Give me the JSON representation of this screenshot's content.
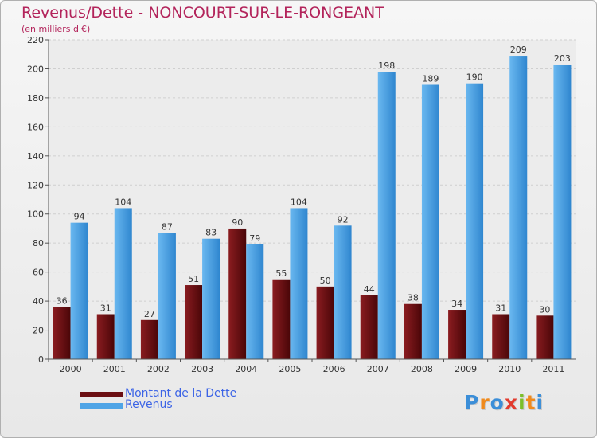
{
  "title": "Revenus/Dette - NONCOURT-SUR-LE-RONGEANT",
  "subtitle": "(en milliers d'€)",
  "chart_data": {
    "type": "bar",
    "categories": [
      "2000",
      "2001",
      "2002",
      "2003",
      "2004",
      "2005",
      "2006",
      "2007",
      "2008",
      "2009",
      "2010",
      "2011"
    ],
    "series": [
      {
        "name": "Montant de la Dette",
        "values": [
          36,
          31,
          27,
          51,
          90,
          55,
          50,
          44,
          38,
          34,
          31,
          30
        ],
        "color": "#6b0f12"
      },
      {
        "name": "Revenus",
        "values": [
          94,
          104,
          87,
          83,
          79,
          104,
          92,
          198,
          189,
          190,
          209,
          203
        ],
        "color": "#4ea4e6"
      }
    ],
    "ylim": [
      0,
      220
    ],
    "yticks": [
      0,
      20,
      40,
      60,
      80,
      100,
      120,
      140,
      160,
      180,
      200,
      220
    ],
    "grid": true,
    "legend_position": "bottom-left"
  },
  "logo": {
    "letters": [
      {
        "ch": "P",
        "color": "#3b8ed8"
      },
      {
        "ch": "r",
        "color": "#f08a1c"
      },
      {
        "ch": "o",
        "color": "#3b8ed8"
      },
      {
        "ch": "x",
        "color": "#e23b2e"
      },
      {
        "ch": "i",
        "color": "#7cbf2a"
      },
      {
        "ch": "t",
        "color": "#f08a1c"
      },
      {
        "ch": "i",
        "color": "#3b8ed8"
      }
    ]
  }
}
